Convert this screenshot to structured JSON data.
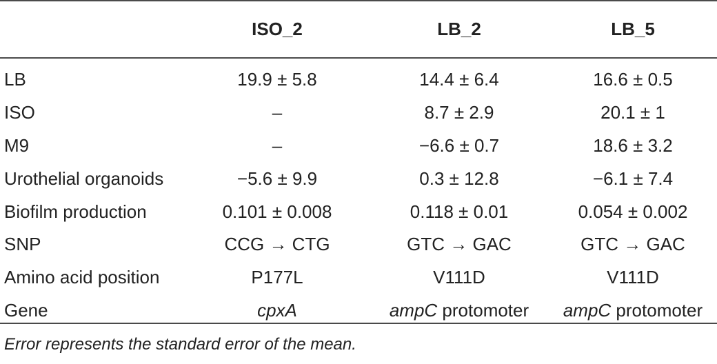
{
  "table": {
    "headers": [
      "",
      "ISO_2",
      "LB_2",
      "LB_5"
    ],
    "rows": [
      {
        "label": "LB",
        "iso2": "19.9 ± 5.8",
        "lb2": "14.4 ± 6.4",
        "lb5": "16.6 ± 0.5"
      },
      {
        "label": "ISO",
        "iso2": "–",
        "lb2": "8.7 ± 2.9",
        "lb5": "20.1 ± 1"
      },
      {
        "label": "M9",
        "iso2": "–",
        "lb2": "−6.6 ± 0.7",
        "lb5": "18.6 ± 3.2"
      },
      {
        "label": "Urothelial organoids",
        "iso2": "−5.6 ± 9.9",
        "lb2": "0.3 ± 12.8",
        "lb5": "−6.1 ± 7.4"
      },
      {
        "label": "Biofilm production",
        "iso2": "0.101 ± 0.008",
        "lb2": "0.118 ± 0.01",
        "lb5": "0.054 ± 0.002"
      },
      {
        "label": "SNP",
        "iso2": "CCG → CTG",
        "lb2": "GTC → GAC",
        "lb5": "GTC → GAC"
      },
      {
        "label": "Amino acid position",
        "iso2": "P177L",
        "lb2": "V111D",
        "lb5": "V111D"
      }
    ],
    "gene_row": {
      "label": "Gene",
      "iso2_gene": "cpxA",
      "lb2_gene": "ampC",
      "lb2_suffix": " protomoter",
      "lb5_gene": "ampC",
      "lb5_suffix": " protomoter"
    }
  },
  "footnote": "Error represents the standard error of the mean."
}
